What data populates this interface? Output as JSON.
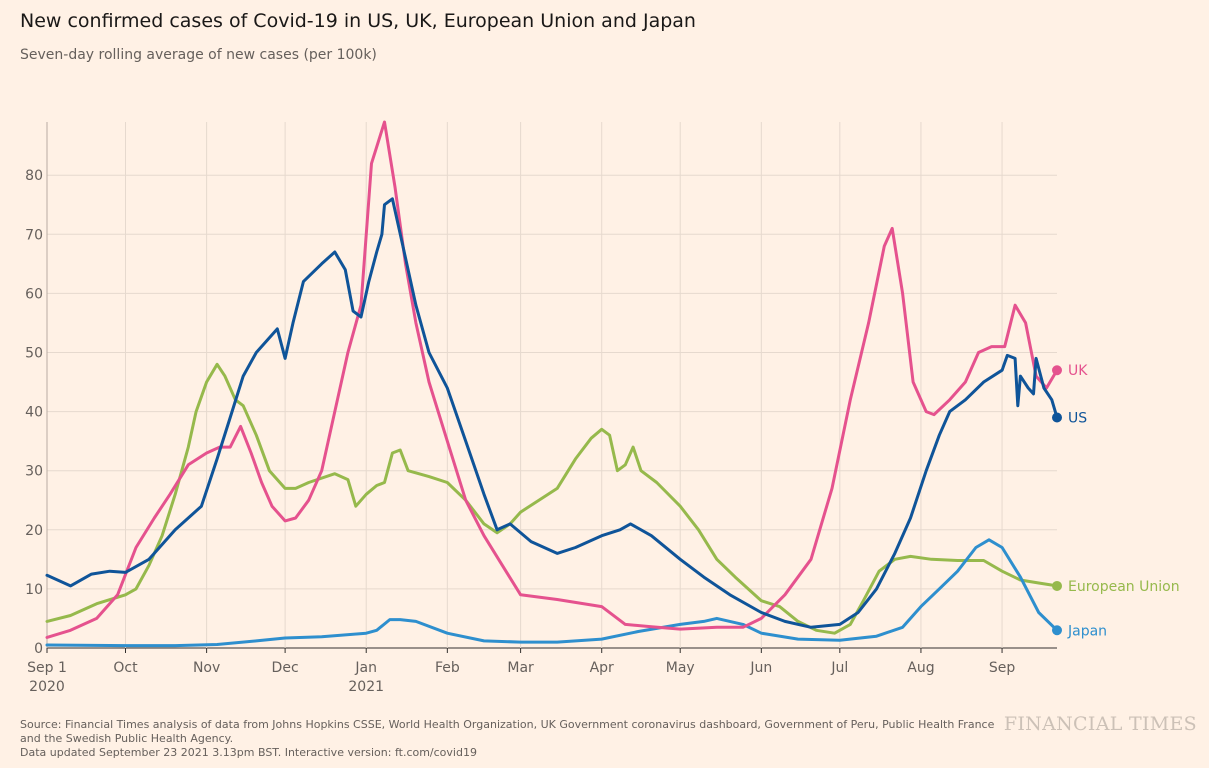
{
  "header": {
    "title": "New confirmed cases of Covid-19 in US, UK, European Union and Japan",
    "subtitle": "Seven-day rolling average of new cases (per 100k)"
  },
  "footer": {
    "source_line1": "Source: Financial Times analysis of data from Johns Hopkins CSSE, World Health Organization, UK Government coronavirus dashboard, Government of Peru, Public Health France and the Swedish Public Health Agency.",
    "source_line2": "Data updated September 23 2021 3.13pm BST. Interactive version: ft.com/covid19",
    "brand": "FINANCIAL TIMES"
  },
  "chart_data": {
    "type": "line",
    "title": "New confirmed cases of Covid-19 in US, UK, European Union and Japan",
    "subtitle": "Seven-day rolling average of new cases (per 100k)",
    "xlabel": "",
    "ylabel": "",
    "x_range": [
      "2020-09-01",
      "2021-09-22"
    ],
    "ylim": [
      0,
      89
    ],
    "yticks": [
      0,
      10,
      20,
      30,
      40,
      50,
      60,
      70,
      80
    ],
    "xticks": [
      {
        "date": "2020-09-01",
        "label": "Sep 1",
        "sub": "2020"
      },
      {
        "date": "2020-10-01",
        "label": "Oct",
        "sub": ""
      },
      {
        "date": "2020-11-01",
        "label": "Nov",
        "sub": ""
      },
      {
        "date": "2020-12-01",
        "label": "Dec",
        "sub": ""
      },
      {
        "date": "2021-01-01",
        "label": "Jan",
        "sub": "2021"
      },
      {
        "date": "2021-02-01",
        "label": "Feb",
        "sub": ""
      },
      {
        "date": "2021-03-01",
        "label": "Mar",
        "sub": ""
      },
      {
        "date": "2021-04-01",
        "label": "Apr",
        "sub": ""
      },
      {
        "date": "2021-05-01",
        "label": "May",
        "sub": ""
      },
      {
        "date": "2021-06-01",
        "label": "Jun",
        "sub": ""
      },
      {
        "date": "2021-07-01",
        "label": "Jul",
        "sub": ""
      },
      {
        "date": "2021-08-01",
        "label": "Aug",
        "sub": ""
      },
      {
        "date": "2021-09-01",
        "label": "Sep",
        "sub": ""
      }
    ],
    "grid": true,
    "legend": "end-of-line labels",
    "series": [
      {
        "name": "European Union",
        "color": "#96b94c",
        "points": [
          [
            "2020-09-01",
            4.5
          ],
          [
            "2020-09-10",
            5.5
          ],
          [
            "2020-09-20",
            7.5
          ],
          [
            "2020-10-01",
            9
          ],
          [
            "2020-10-05",
            10
          ],
          [
            "2020-10-10",
            14
          ],
          [
            "2020-10-15",
            19
          ],
          [
            "2020-10-20",
            26
          ],
          [
            "2020-10-25",
            34
          ],
          [
            "2020-10-28",
            40
          ],
          [
            "2020-11-01",
            45
          ],
          [
            "2020-11-05",
            48
          ],
          [
            "2020-11-08",
            46
          ],
          [
            "2020-11-12",
            42
          ],
          [
            "2020-11-15",
            41
          ],
          [
            "2020-11-20",
            36
          ],
          [
            "2020-11-25",
            30
          ],
          [
            "2020-12-01",
            27
          ],
          [
            "2020-12-05",
            27
          ],
          [
            "2020-12-10",
            28
          ],
          [
            "2020-12-20",
            29.5
          ],
          [
            "2020-12-25",
            28.5
          ],
          [
            "2020-12-28",
            24
          ],
          [
            "2021-01-01",
            26
          ],
          [
            "2021-01-05",
            27.5
          ],
          [
            "2021-01-08",
            28
          ],
          [
            "2021-01-11",
            33
          ],
          [
            "2021-01-14",
            33.5
          ],
          [
            "2021-01-17",
            30
          ],
          [
            "2021-01-25",
            29
          ],
          [
            "2021-02-01",
            28
          ],
          [
            "2021-02-08",
            25
          ],
          [
            "2021-02-15",
            21
          ],
          [
            "2021-02-20",
            19.5
          ],
          [
            "2021-02-25",
            21
          ],
          [
            "2021-03-01",
            23
          ],
          [
            "2021-03-08",
            25
          ],
          [
            "2021-03-15",
            27
          ],
          [
            "2021-03-22",
            32
          ],
          [
            "2021-03-28",
            35.5
          ],
          [
            "2021-04-01",
            37
          ],
          [
            "2021-04-04",
            36
          ],
          [
            "2021-04-07",
            30
          ],
          [
            "2021-04-10",
            31
          ],
          [
            "2021-04-13",
            34
          ],
          [
            "2021-04-16",
            30
          ],
          [
            "2021-04-22",
            28
          ],
          [
            "2021-05-01",
            24
          ],
          [
            "2021-05-08",
            20
          ],
          [
            "2021-05-15",
            15
          ],
          [
            "2021-05-22",
            12
          ],
          [
            "2021-06-01",
            8
          ],
          [
            "2021-06-08",
            7
          ],
          [
            "2021-06-15",
            4.5
          ],
          [
            "2021-06-22",
            3
          ],
          [
            "2021-06-29",
            2.5
          ],
          [
            "2021-07-05",
            4
          ],
          [
            "2021-07-10",
            8
          ],
          [
            "2021-07-16",
            13
          ],
          [
            "2021-07-22",
            15
          ],
          [
            "2021-07-28",
            15.5
          ],
          [
            "2021-08-05",
            15
          ],
          [
            "2021-08-15",
            14.8
          ],
          [
            "2021-08-25",
            14.8
          ],
          [
            "2021-09-01",
            13
          ],
          [
            "2021-09-08",
            11.5
          ],
          [
            "2021-09-15",
            11
          ],
          [
            "2021-09-22",
            10.5
          ]
        ]
      },
      {
        "name": "Japan",
        "color": "#2e8fce",
        "points": [
          [
            "2020-09-01",
            0.5
          ],
          [
            "2020-10-01",
            0.4
          ],
          [
            "2020-10-20",
            0.4
          ],
          [
            "2020-11-05",
            0.6
          ],
          [
            "2020-11-20",
            1.2
          ],
          [
            "2020-12-01",
            1.7
          ],
          [
            "2020-12-15",
            1.9
          ],
          [
            "2021-01-01",
            2.5
          ],
          [
            "2021-01-05",
            3
          ],
          [
            "2021-01-10",
            4.8
          ],
          [
            "2021-01-14",
            4.8
          ],
          [
            "2021-01-20",
            4.5
          ],
          [
            "2021-02-01",
            2.5
          ],
          [
            "2021-02-15",
            1.2
          ],
          [
            "2021-03-01",
            1
          ],
          [
            "2021-03-15",
            1
          ],
          [
            "2021-04-01",
            1.5
          ],
          [
            "2021-04-15",
            2.8
          ],
          [
            "2021-05-01",
            4
          ],
          [
            "2021-05-10",
            4.5
          ],
          [
            "2021-05-15",
            5
          ],
          [
            "2021-05-25",
            4
          ],
          [
            "2021-06-01",
            2.5
          ],
          [
            "2021-06-15",
            1.5
          ],
          [
            "2021-07-01",
            1.3
          ],
          [
            "2021-07-15",
            2
          ],
          [
            "2021-07-25",
            3.5
          ],
          [
            "2021-08-01",
            7
          ],
          [
            "2021-08-08",
            10
          ],
          [
            "2021-08-15",
            13
          ],
          [
            "2021-08-22",
            17
          ],
          [
            "2021-08-27",
            18.3
          ],
          [
            "2021-09-01",
            17
          ],
          [
            "2021-09-08",
            12
          ],
          [
            "2021-09-15",
            6
          ],
          [
            "2021-09-22",
            3
          ]
        ]
      },
      {
        "name": "UK",
        "color": "#e5528e",
        "points": [
          [
            "2020-09-01",
            1.8
          ],
          [
            "2020-09-10",
            3
          ],
          [
            "2020-09-20",
            5
          ],
          [
            "2020-09-28",
            9
          ],
          [
            "2020-10-05",
            17
          ],
          [
            "2020-10-12",
            22
          ],
          [
            "2020-10-18",
            26
          ],
          [
            "2020-10-25",
            31
          ],
          [
            "2020-11-01",
            33
          ],
          [
            "2020-11-06",
            34
          ],
          [
            "2020-11-10",
            34
          ],
          [
            "2020-11-14",
            37.5
          ],
          [
            "2020-11-18",
            33
          ],
          [
            "2020-11-22",
            28
          ],
          [
            "2020-11-26",
            24
          ],
          [
            "2020-12-01",
            21.5
          ],
          [
            "2020-12-05",
            22
          ],
          [
            "2020-12-10",
            25
          ],
          [
            "2020-12-15",
            30
          ],
          [
            "2020-12-20",
            40
          ],
          [
            "2020-12-25",
            50
          ],
          [
            "2020-12-30",
            58
          ],
          [
            "2021-01-03",
            82
          ],
          [
            "2021-01-08",
            89
          ],
          [
            "2021-01-12",
            78
          ],
          [
            "2021-01-16",
            65
          ],
          [
            "2021-01-20",
            55
          ],
          [
            "2021-01-25",
            45
          ],
          [
            "2021-02-01",
            35
          ],
          [
            "2021-02-08",
            25
          ],
          [
            "2021-02-15",
            19
          ],
          [
            "2021-02-22",
            14
          ],
          [
            "2021-03-01",
            9
          ],
          [
            "2021-03-15",
            8.2
          ],
          [
            "2021-04-01",
            7
          ],
          [
            "2021-04-10",
            4
          ],
          [
            "2021-04-20",
            3.6
          ],
          [
            "2021-05-01",
            3.2
          ],
          [
            "2021-05-15",
            3.5
          ],
          [
            "2021-05-25",
            3.5
          ],
          [
            "2021-06-01",
            5
          ],
          [
            "2021-06-10",
            9
          ],
          [
            "2021-06-20",
            15
          ],
          [
            "2021-06-28",
            27
          ],
          [
            "2021-07-05",
            42
          ],
          [
            "2021-07-12",
            55
          ],
          [
            "2021-07-18",
            68
          ],
          [
            "2021-07-21",
            71
          ],
          [
            "2021-07-25",
            60
          ],
          [
            "2021-07-29",
            45
          ],
          [
            "2021-08-03",
            40
          ],
          [
            "2021-08-06",
            39.5
          ],
          [
            "2021-08-12",
            42
          ],
          [
            "2021-08-18",
            45
          ],
          [
            "2021-08-23",
            50
          ],
          [
            "2021-08-28",
            51
          ],
          [
            "2021-09-02",
            51
          ],
          [
            "2021-09-06",
            58
          ],
          [
            "2021-09-10",
            55
          ],
          [
            "2021-09-14",
            46
          ],
          [
            "2021-09-18",
            44
          ],
          [
            "2021-09-22",
            47
          ]
        ]
      },
      {
        "name": "US",
        "color": "#0f5499",
        "points": [
          [
            "2020-09-01",
            12.3
          ],
          [
            "2020-09-10",
            10.5
          ],
          [
            "2020-09-18",
            12.5
          ],
          [
            "2020-09-25",
            13
          ],
          [
            "2020-10-01",
            12.8
          ],
          [
            "2020-10-10",
            15
          ],
          [
            "2020-10-20",
            20
          ],
          [
            "2020-10-30",
            24
          ],
          [
            "2020-11-05",
            32
          ],
          [
            "2020-11-10",
            39
          ],
          [
            "2020-11-15",
            46
          ],
          [
            "2020-11-20",
            50
          ],
          [
            "2020-11-28",
            54
          ],
          [
            "2020-12-01",
            49
          ],
          [
            "2020-12-04",
            55
          ],
          [
            "2020-12-08",
            62
          ],
          [
            "2020-12-15",
            65
          ],
          [
            "2020-12-20",
            67
          ],
          [
            "2020-12-24",
            64
          ],
          [
            "2020-12-27",
            57
          ],
          [
            "2020-12-30",
            56
          ],
          [
            "2021-01-02",
            62
          ],
          [
            "2021-01-05",
            67
          ],
          [
            "2021-01-07",
            70
          ],
          [
            "2021-01-08",
            75
          ],
          [
            "2021-01-11",
            76
          ],
          [
            "2021-01-15",
            68
          ],
          [
            "2021-01-20",
            58
          ],
          [
            "2021-01-25",
            50
          ],
          [
            "2021-02-01",
            44
          ],
          [
            "2021-02-08",
            35
          ],
          [
            "2021-02-15",
            26
          ],
          [
            "2021-02-20",
            20
          ],
          [
            "2021-02-25",
            21
          ],
          [
            "2021-03-05",
            18
          ],
          [
            "2021-03-15",
            16
          ],
          [
            "2021-03-22",
            17
          ],
          [
            "2021-04-01",
            19
          ],
          [
            "2021-04-08",
            20
          ],
          [
            "2021-04-12",
            21
          ],
          [
            "2021-04-20",
            19
          ],
          [
            "2021-05-01",
            15
          ],
          [
            "2021-05-10",
            12
          ],
          [
            "2021-05-20",
            9
          ],
          [
            "2021-06-01",
            6
          ],
          [
            "2021-06-10",
            4.5
          ],
          [
            "2021-06-20",
            3.5
          ],
          [
            "2021-07-01",
            4
          ],
          [
            "2021-07-08",
            6
          ],
          [
            "2021-07-15",
            10
          ],
          [
            "2021-07-22",
            16
          ],
          [
            "2021-07-28",
            22
          ],
          [
            "2021-08-03",
            30
          ],
          [
            "2021-08-08",
            36
          ],
          [
            "2021-08-12",
            40
          ],
          [
            "2021-08-18",
            42
          ],
          [
            "2021-08-25",
            45
          ],
          [
            "2021-09-01",
            47
          ],
          [
            "2021-09-03",
            49.5
          ],
          [
            "2021-09-06",
            49
          ],
          [
            "2021-09-07",
            41
          ],
          [
            "2021-09-08",
            46
          ],
          [
            "2021-09-11",
            44
          ],
          [
            "2021-09-13",
            43
          ],
          [
            "2021-09-14",
            49
          ],
          [
            "2021-09-17",
            44
          ],
          [
            "2021-09-20",
            42
          ],
          [
            "2021-09-22",
            39
          ]
        ]
      }
    ]
  }
}
